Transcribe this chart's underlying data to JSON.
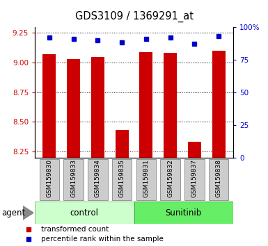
{
  "title": "GDS3109 / 1369291_at",
  "samples": [
    "GSM159830",
    "GSM159833",
    "GSM159834",
    "GSM159835",
    "GSM159831",
    "GSM159832",
    "GSM159837",
    "GSM159838"
  ],
  "bar_values": [
    9.07,
    9.03,
    9.05,
    8.43,
    9.09,
    9.08,
    8.33,
    9.1
  ],
  "percentile_values": [
    92,
    91,
    90,
    88,
    91,
    92,
    87,
    93
  ],
  "ylim_left": [
    8.2,
    9.3
  ],
  "ylim_right": [
    0,
    100
  ],
  "yticks_left": [
    8.25,
    8.5,
    8.75,
    9.0,
    9.25
  ],
  "yticks_right": [
    0,
    25,
    50,
    75,
    100
  ],
  "groups": [
    {
      "label": "control",
      "n": 4,
      "color": "#ccffcc",
      "border": "#88cc88"
    },
    {
      "label": "Sunitinib",
      "n": 4,
      "color": "#66ee66",
      "border": "#44aa44"
    }
  ],
  "bar_color": "#cc0000",
  "marker_color": "#0000cc",
  "bar_width": 0.55,
  "left_axis_color": "#cc0000",
  "right_axis_color": "#0000cc",
  "agent_label": "agent",
  "legend_items": [
    {
      "color": "#cc0000",
      "marker": "s",
      "label": "transformed count"
    },
    {
      "color": "#0000cc",
      "marker": "s",
      "label": "percentile rank within the sample"
    }
  ],
  "sample_box_color": "#cccccc",
  "sample_box_edge": "#888888"
}
